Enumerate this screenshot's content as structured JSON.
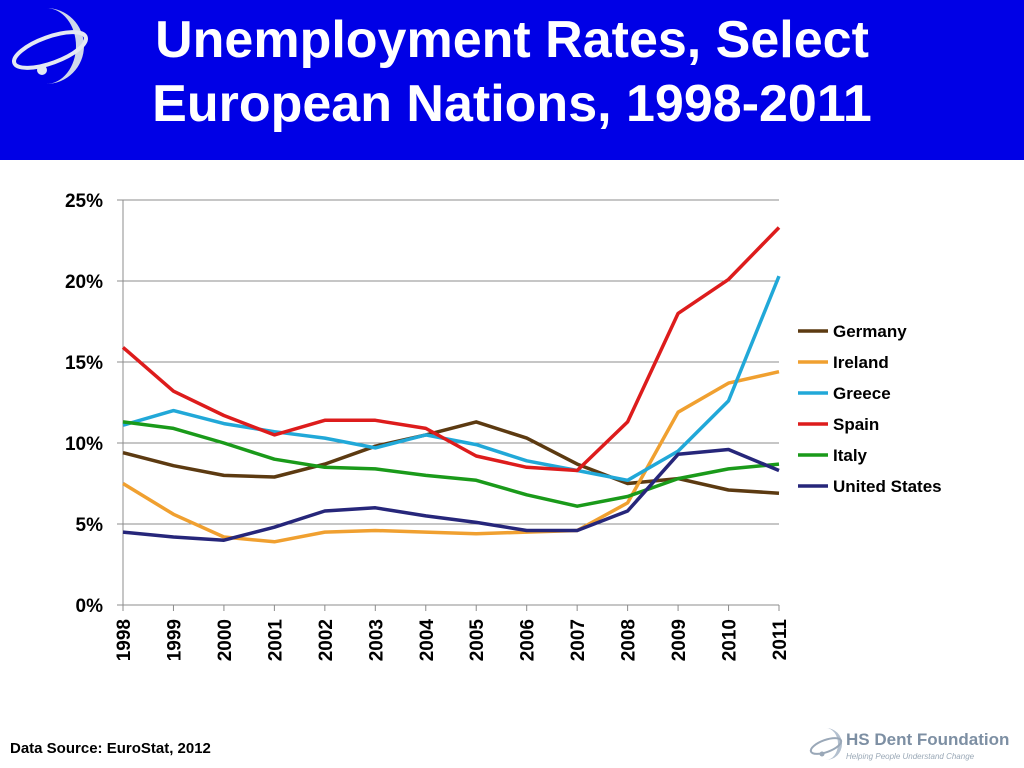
{
  "header": {
    "title_line1": "Unemployment Rates, Select",
    "title_line2": "European Nations, 1998-2011"
  },
  "footer": {
    "source": "Data Source: EuroStat, 2012",
    "brand_name": "HS Dent Foundation",
    "brand_tagline": "Helping People Understand Change"
  },
  "colors": {
    "header_bg": "#0000e6",
    "Germany": "#5c3a11",
    "Ireland": "#f0a030",
    "Greece": "#21a8d8",
    "Spain": "#dd1c1c",
    "Italy": "#1a9a1a",
    "United States": "#26267a"
  },
  "chart_data": {
    "type": "line",
    "x": [
      "1998",
      "1999",
      "2000",
      "2001",
      "2002",
      "2003",
      "2004",
      "2005",
      "2006",
      "2007",
      "2008",
      "2009",
      "2010",
      "2011"
    ],
    "ylim": [
      0,
      25
    ],
    "yticks": [
      "0%",
      "5%",
      "10%",
      "15%",
      "20%",
      "25%"
    ],
    "ytick_values": [
      0,
      5,
      10,
      15,
      20,
      25
    ],
    "grid": true,
    "legend": "right",
    "series": [
      {
        "name": "Germany",
        "values": [
          9.4,
          8.6,
          8.0,
          7.9,
          8.7,
          9.8,
          10.5,
          11.3,
          10.3,
          8.7,
          7.5,
          7.8,
          7.1,
          6.9
        ]
      },
      {
        "name": "Ireland",
        "values": [
          7.5,
          5.6,
          4.2,
          3.9,
          4.5,
          4.6,
          4.5,
          4.4,
          4.5,
          4.6,
          6.3,
          11.9,
          13.7,
          14.4
        ]
      },
      {
        "name": "Greece",
        "values": [
          11.1,
          12.0,
          11.2,
          10.7,
          10.3,
          9.7,
          10.5,
          9.9,
          8.9,
          8.3,
          7.7,
          9.5,
          12.6,
          20.3
        ]
      },
      {
        "name": "Spain",
        "values": [
          15.9,
          13.2,
          11.7,
          10.5,
          11.4,
          11.4,
          10.9,
          9.2,
          8.5,
          8.3,
          11.3,
          18.0,
          20.1,
          23.3
        ]
      },
      {
        "name": "Italy",
        "values": [
          11.3,
          10.9,
          10.0,
          9.0,
          8.5,
          8.4,
          8.0,
          7.7,
          6.8,
          6.1,
          6.7,
          7.8,
          8.4,
          8.7
        ]
      },
      {
        "name": "United States",
        "values": [
          4.5,
          4.2,
          4.0,
          4.8,
          5.8,
          6.0,
          5.5,
          5.1,
          4.6,
          4.6,
          5.8,
          9.3,
          9.6,
          8.3
        ]
      }
    ]
  }
}
